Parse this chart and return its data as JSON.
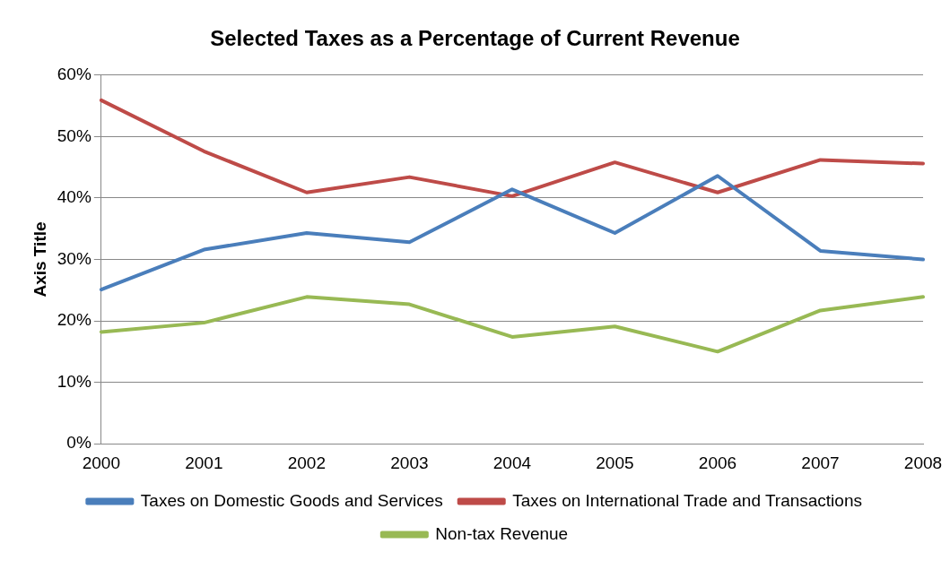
{
  "chart_data": {
    "type": "line",
    "title": "Selected Taxes as a Percentage of Current Revenue",
    "ylabel": "Axis Title",
    "categories": [
      "2000",
      "2001",
      "2002",
      "2003",
      "2004",
      "2005",
      "2006",
      "2007",
      "2008"
    ],
    "series": [
      {
        "name": "Taxes on Domestic Goods and Services",
        "color": "#4a7ebb",
        "values": [
          25.1,
          31.6,
          34.3,
          32.8,
          41.4,
          34.3,
          43.6,
          31.4,
          30.0
        ]
      },
      {
        "name": "Taxes on International Trade and Transactions",
        "color": "#be4b48",
        "values": [
          55.9,
          47.6,
          40.9,
          43.4,
          40.3,
          45.8,
          40.9,
          46.2,
          45.6
        ]
      },
      {
        "name": "Non-tax Revenue",
        "color": "#98b954",
        "values": [
          18.2,
          19.7,
          23.9,
          22.7,
          17.4,
          19.1,
          15.0,
          21.7,
          23.9
        ]
      }
    ],
    "ylim": [
      0,
      60
    ],
    "yticks": [
      {
        "value": 0,
        "label": "0%"
      },
      {
        "value": 10,
        "label": "10%"
      },
      {
        "value": 20,
        "label": "20%"
      },
      {
        "value": 30,
        "label": "30%"
      },
      {
        "value": 40,
        "label": "40%"
      },
      {
        "value": 50,
        "label": "50%"
      },
      {
        "value": 60,
        "label": "60%"
      }
    ],
    "grid": "y",
    "legend": "bottom",
    "marker": "none",
    "line_style": "solid"
  }
}
